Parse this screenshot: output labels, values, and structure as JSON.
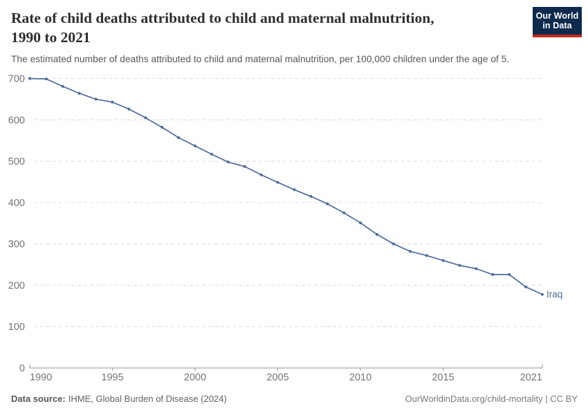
{
  "header": {
    "title_line1": "Rate of child deaths attributed to child and maternal malnutrition,",
    "title_line2": "1990 to 2021",
    "subtitle": "The estimated number of deaths attributed to child and maternal malnutrition, per 100,000 children under the age of 5.",
    "logo": {
      "line1": "Our World",
      "line2": "in Data"
    }
  },
  "footer": {
    "source_label": "Data source:",
    "source_text": "IHME, Global Burden of Disease (2024)",
    "credit": "OurWorldinData.org/child-mortality | CC BY"
  },
  "chart_data": {
    "type": "line",
    "title": "Rate of child deaths attributed to child and maternal malnutrition, 1990 to 2021",
    "ylabel": "",
    "xlabel": "",
    "xlim": [
      1990,
      2021
    ],
    "ylim": [
      0,
      700
    ],
    "yticks": [
      0,
      100,
      200,
      300,
      400,
      500,
      600,
      700
    ],
    "xticks": [
      1990,
      1995,
      2000,
      2005,
      2010,
      2015,
      2021
    ],
    "grid": "horizontal-dashed",
    "legend_position": "end-of-line-label",
    "x": [
      1990,
      1991,
      1992,
      1993,
      1994,
      1995,
      1996,
      1997,
      1998,
      1999,
      2000,
      2001,
      2002,
      2003,
      2004,
      2005,
      2006,
      2007,
      2008,
      2009,
      2010,
      2011,
      2012,
      2013,
      2014,
      2015,
      2016,
      2017,
      2018,
      2019,
      2020,
      2021
    ],
    "series": [
      {
        "name": "Iraq",
        "color": "#4c6a9c",
        "values": [
          700,
          699,
          681,
          664,
          650,
          643,
          626,
          605,
          582,
          557,
          537,
          517,
          498,
          487,
          467,
          449,
          431,
          415,
          397,
          375,
          351,
          323,
          300,
          282,
          272,
          260,
          248,
          240,
          226,
          226,
          196,
          178
        ]
      }
    ]
  },
  "colors": {
    "line": "#4c6a9c",
    "grid": "#dcdcdc",
    "axis": "#8f8f8f",
    "tick_label": "#737373",
    "logo_bg": "#0e2a4d",
    "logo_stripe": "#c4281c"
  }
}
